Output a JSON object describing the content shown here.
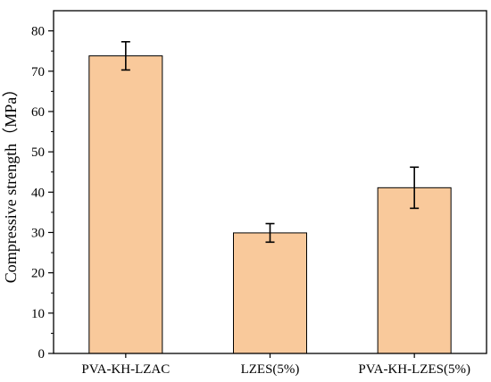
{
  "chart_data": {
    "type": "bar",
    "categories": [
      "PVA-KH-LZAC",
      "LZES(5%)",
      "PVA-KH-LZES(5%)"
    ],
    "values": [
      73.8,
      29.9,
      41.1
    ],
    "errors": [
      3.5,
      2.3,
      5.1
    ],
    "ylabel": "Compressive strength（MPa）",
    "xlabel": "",
    "ylim": [
      0,
      85
    ],
    "yticks": [
      0,
      10,
      20,
      30,
      40,
      50,
      60,
      70,
      80
    ],
    "grid": false,
    "bar_color": "#F9C99B",
    "bar_edge_color": "#000000"
  }
}
